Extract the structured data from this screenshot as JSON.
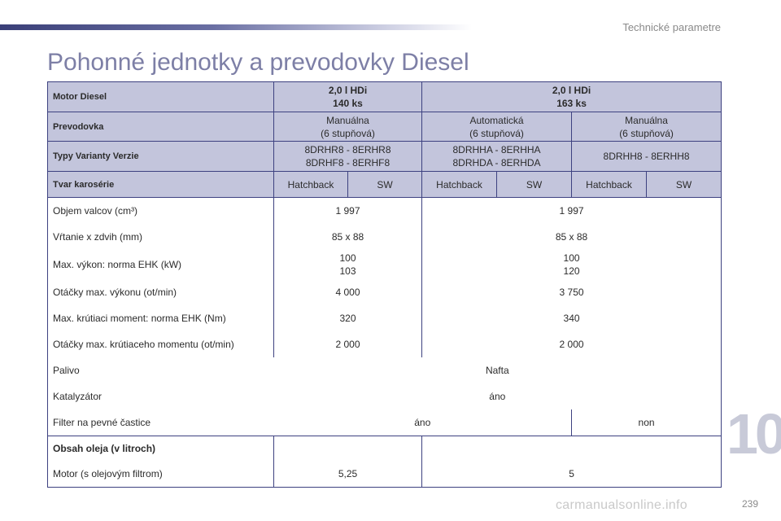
{
  "header": {
    "section_title": "Technické parametre",
    "page_title": "Pohonné jednotky a prevodovky Diesel"
  },
  "table": {
    "motor_label": "Motor Diesel",
    "engine_a": "2,0 l HDi",
    "engine_a_power": "140 ks",
    "engine_b": "2,0 l HDi",
    "engine_b_power": "163 ks",
    "gearbox_label": "Prevodovka",
    "gearbox_a_1": "Manuálna",
    "gearbox_a_2": "(6 stupňová)",
    "gearbox_b_1": "Automatická",
    "gearbox_b_2": "(6 stupňová)",
    "gearbox_c_1": "Manuálna",
    "gearbox_c_2": "(6 stupňová)",
    "types_label": "Typy Varianty Verzie",
    "types_a_1": "8DRHR8 - 8ERHR8",
    "types_a_2": "8DRHF8 - 8ERHF8",
    "types_b_1": "8DRHHA - 8ERHHA",
    "types_b_2": "8DRHDA - 8ERHDA",
    "types_c": "8DRHH8 - 8ERHH8",
    "body_label": "Tvar karosérie",
    "body_hatchback": "Hatchback",
    "body_sw": "SW",
    "displacement_label": "Objem valcov (cm³)",
    "displacement_a": "1 997",
    "displacement_b": "1 997",
    "bore_label": "Vŕtanie x zdvih (mm)",
    "bore_a": "85 x 88",
    "bore_b": "85 x 88",
    "power_label": "Max. výkon: norma EHK (kW)",
    "power_a_1": "100",
    "power_a_2": "103",
    "power_b_1": "100",
    "power_b_2": "120",
    "power_rpm_label": "Otáčky max. výkonu (ot/min)",
    "power_rpm_a": "4 000",
    "power_rpm_b": "3 750",
    "torque_label": "Max. krútiaci moment: norma EHK (Nm)",
    "torque_a": "320",
    "torque_b": "340",
    "torque_rpm_label": "Otáčky max. krútiaceho momentu (ot/min)",
    "torque_rpm_a": "2 000",
    "torque_rpm_b": "2 000",
    "fuel_label": "Palivo",
    "fuel_value": "Nafta",
    "catalyst_label": "Katalyzátor",
    "catalyst_value": "áno",
    "filter_label": "Filter na pevné častice",
    "filter_a": "áno",
    "filter_b": "non",
    "oil_label": "Obsah oleja (v litroch)",
    "oil_engine_label": "Motor (s olejovým filtrom)",
    "oil_a": "5,25",
    "oil_b": "5"
  },
  "footer": {
    "chapter_number": "10",
    "page_number": "239",
    "watermark": "carmanualsonline.info"
  },
  "colors": {
    "accent": "#7d7fa6",
    "header_fill": "#c3c5dc",
    "border": "#3d4180"
  }
}
